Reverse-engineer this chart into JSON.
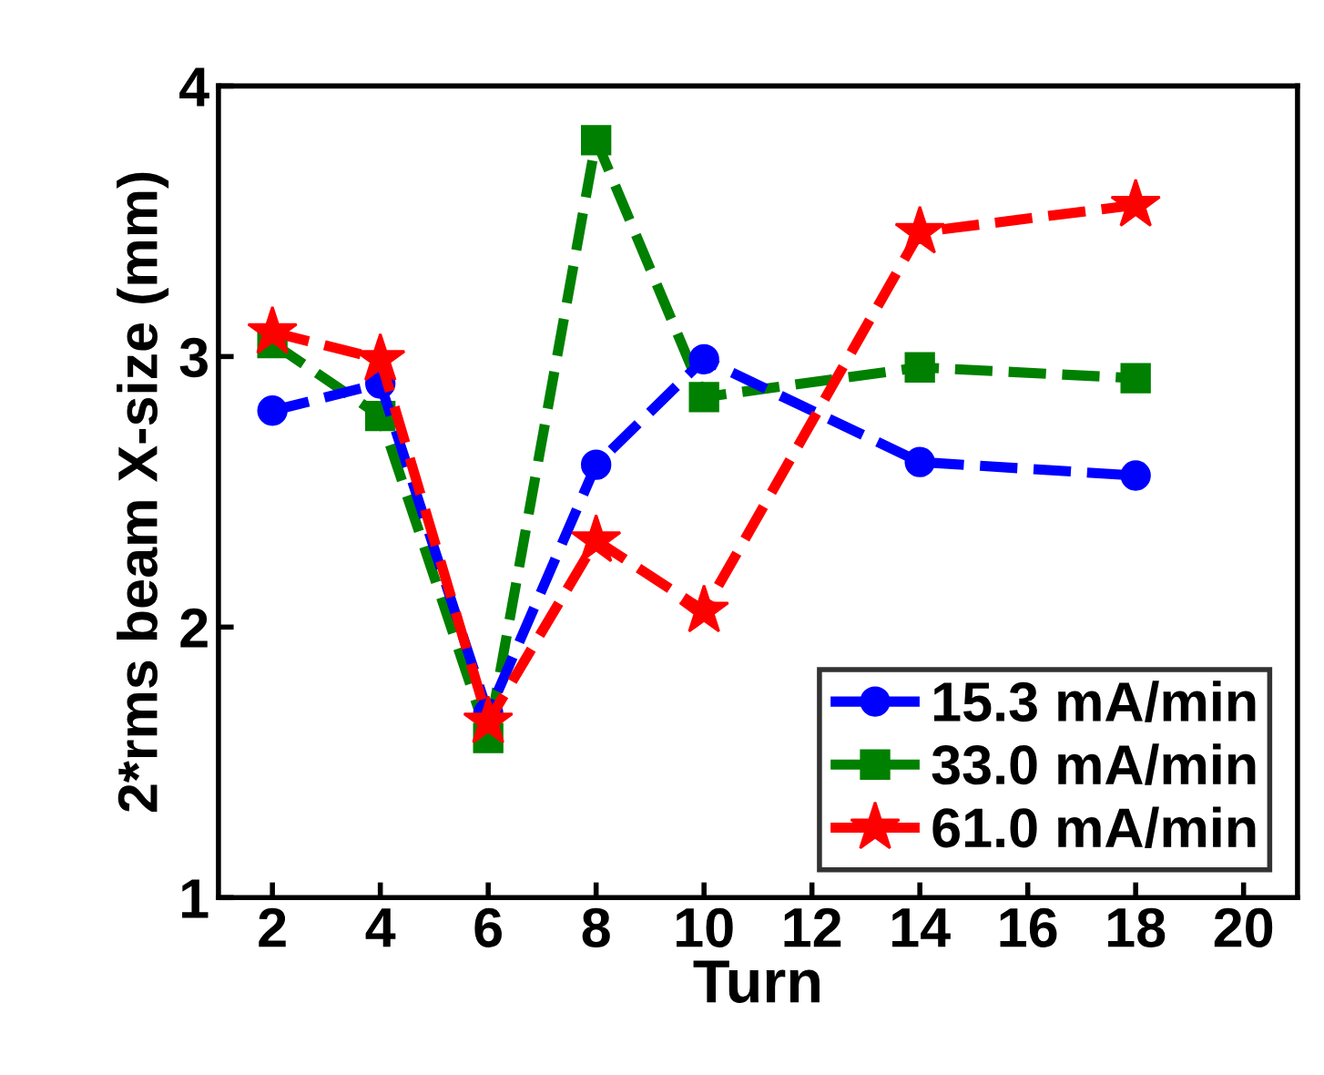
{
  "chart_data": {
    "type": "line",
    "xlabel": "Turn",
    "ylabel": "2*rms beam X-size (mm)",
    "xlim": [
      1,
      21
    ],
    "xticks": [
      2,
      4,
      6,
      8,
      10,
      12,
      14,
      16,
      18,
      20
    ],
    "ylim": [
      1,
      4
    ],
    "yticks": [
      1,
      2,
      3,
      4
    ],
    "grid": false,
    "legend": "bottom right",
    "line_style": "dashed",
    "series": [
      {
        "name": "15.3 mA/min",
        "color": "#0000ff",
        "marker": "circle",
        "x": [
          2,
          4,
          6,
          8,
          10,
          14,
          18
        ],
        "values": [
          2.8,
          2.9,
          1.68,
          2.6,
          2.99,
          2.61,
          2.56
        ]
      },
      {
        "name": "33.0 mA/min",
        "color": "#008000",
        "marker": "square",
        "x": [
          2,
          4,
          6,
          8,
          10,
          14,
          18
        ],
        "values": [
          3.05,
          2.78,
          1.59,
          3.8,
          2.85,
          2.96,
          2.92
        ]
      },
      {
        "name": "61.0 mA/min",
        "color": "#ff0000",
        "marker": "star",
        "x": [
          2,
          4,
          6,
          8,
          10,
          14,
          18
        ],
        "values": [
          3.09,
          2.99,
          1.65,
          2.32,
          2.06,
          3.46,
          3.56
        ]
      }
    ]
  }
}
